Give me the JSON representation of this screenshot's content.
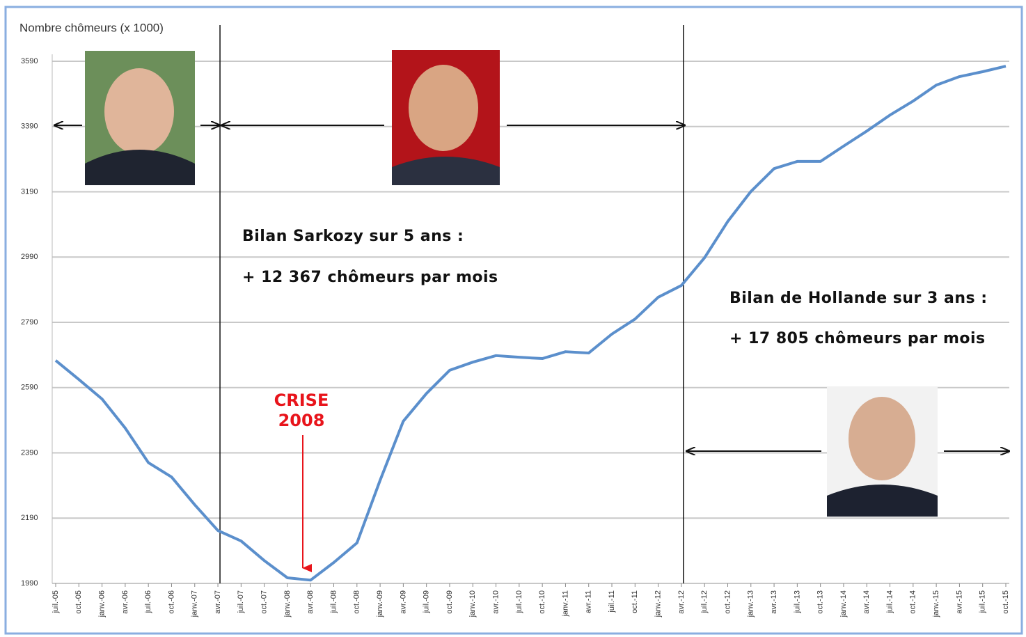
{
  "chart_data": {
    "type": "line",
    "y_label": "Nombre chômeurs (x 1000)",
    "categories": [
      "juil.-05",
      "oct.-05",
      "janv.-06",
      "avr.-06",
      "juil.-06",
      "oct.-06",
      "janv.-07",
      "avr.-07",
      "juil.-07",
      "oct.-07",
      "janv.-08",
      "avr.-08",
      "juil.-08",
      "oct.-08",
      "janv.-09",
      "avr.-09",
      "juil.-09",
      "oct.-09",
      "janv.-10",
      "avr.-10",
      "juil.-10",
      "oct.-10",
      "janv.-11",
      "avr.-11",
      "juil.-11",
      "oct.-11",
      "janv.-12",
      "avr.-12",
      "juil.-12",
      "oct.-12",
      "janv.-13",
      "avr.-13",
      "juil.-13",
      "oct.-13",
      "janv.-14",
      "avr.-14",
      "juil.-14",
      "oct.-14",
      "janv.-15",
      "avr.-15",
      "juil.-15",
      "oct.-15"
    ],
    "series": [
      {
        "color": "#5b8fcc",
        "values": [
          2673,
          2615,
          2555,
          2466,
          2360,
          2316,
          2231,
          2152,
          2120,
          2060,
          2007,
          2000,
          2054,
          2114,
          2306,
          2487,
          2572,
          2643,
          2668,
          2688,
          2683,
          2679,
          2700,
          2696,
          2754,
          2800,
          2867,
          2903,
          2988,
          3099,
          3191,
          3261,
          3283,
          3283,
          3330,
          3376,
          3425,
          3468,
          3517,
          3543,
          3558,
          3575
        ]
      }
    ],
    "ylim": [
      1990,
      3590
    ],
    "yticks": [
      1990,
      2190,
      2390,
      2590,
      2790,
      2990,
      3190,
      3390,
      3590
    ],
    "grid": true,
    "annotations": [
      "Bilan Sarkozy sur 5 ans :",
      "+ 12 367 chômeurs par mois",
      "Bilan de Hollande sur 3 ans :",
      "+ 17 805 chômeurs par mois",
      "CRISE",
      "2008"
    ]
  }
}
